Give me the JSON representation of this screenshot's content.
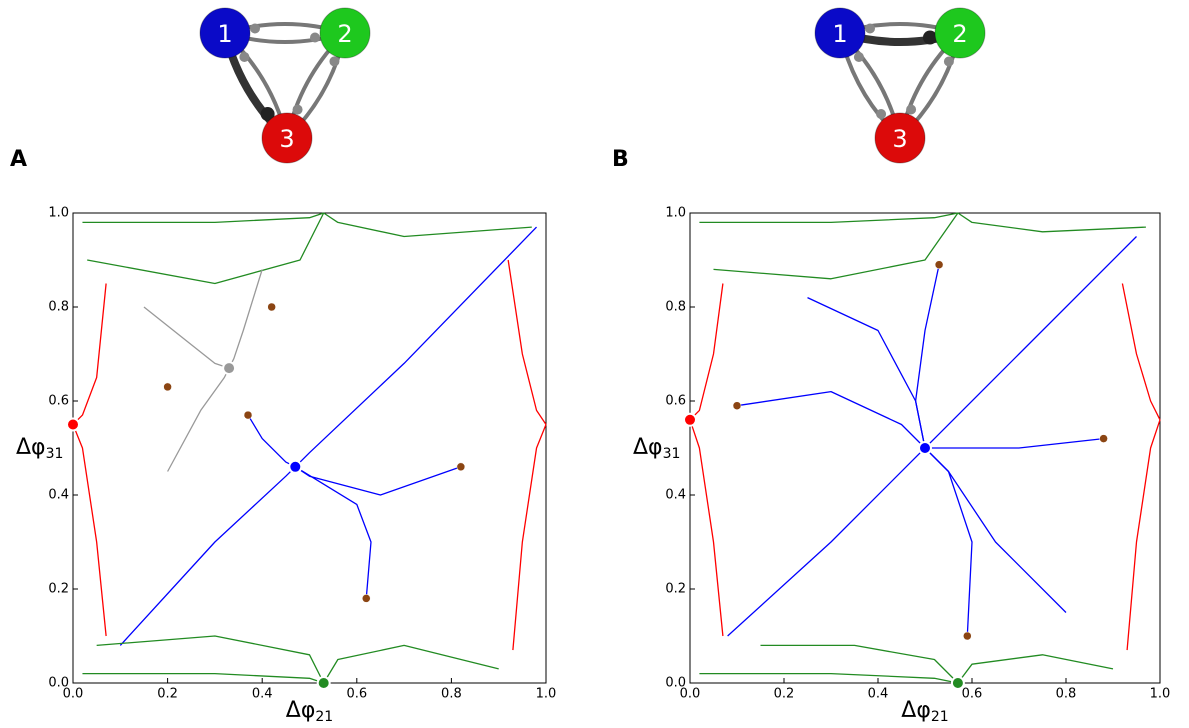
{
  "charts": [
    {
      "type": "phase-portrait",
      "panel_label": "A",
      "xlabel": "Δφ",
      "xlabel_sub": "21",
      "ylabel": "Δφ",
      "ylabel_sub": "31",
      "xlim": [
        0,
        1
      ],
      "ylim": [
        0,
        1
      ],
      "xticks": [
        {
          "value": 0,
          "label": "0.0"
        },
        0.2,
        0.4,
        0.6,
        0.8,
        {
          "value": 1,
          "label": "1.0"
        }
      ],
      "yticks": [
        {
          "value": 0,
          "label": "0.0"
        },
        0.2,
        0.4,
        0.6,
        0.8,
        {
          "value": 1,
          "label": "1.0"
        }
      ],
      "network": {
        "nodes": [
          {
            "label": "1",
            "color": "#0a0ac8"
          },
          {
            "label": "2",
            "color": "#1ec81e"
          },
          {
            "label": "3",
            "color": "#dc0a0a"
          }
        ]
      },
      "trajectories": [
        {
          "color": "#0000ff",
          "x": [
            0.1,
            0.3,
            0.45,
            0.47
          ],
          "y": [
            0.08,
            0.3,
            0.44,
            0.46
          ]
        },
        {
          "color": "#0000ff",
          "x": [
            0.98,
            0.7,
            0.5,
            0.47
          ],
          "y": [
            0.97,
            0.68,
            0.49,
            0.46
          ]
        },
        {
          "color": "#0000ff",
          "x": [
            0.62,
            0.63,
            0.6,
            0.47
          ],
          "y": [
            0.18,
            0.3,
            0.38,
            0.46
          ]
        },
        {
          "color": "#0000ff",
          "x": [
            0.82,
            0.65,
            0.5,
            0.47
          ],
          "y": [
            0.46,
            0.4,
            0.44,
            0.46
          ]
        },
        {
          "color": "#0000ff",
          "x": [
            0.37,
            0.4,
            0.45,
            0.47
          ],
          "y": [
            0.57,
            0.52,
            0.47,
            0.46
          ]
        },
        {
          "color": "#ff0000",
          "x": [
            0.07,
            0.05,
            0.02,
            0.0
          ],
          "y": [
            0.85,
            0.65,
            0.57,
            0.55
          ]
        },
        {
          "color": "#ff0000",
          "x": [
            0.07,
            0.05,
            0.02,
            0.0
          ],
          "y": [
            0.1,
            0.3,
            0.5,
            0.55
          ]
        },
        {
          "color": "#ff0000",
          "x": [
            0.93,
            0.95,
            0.98,
            1.0
          ],
          "y": [
            0.07,
            0.3,
            0.5,
            0.55
          ]
        },
        {
          "color": "#ff0000",
          "x": [
            0.92,
            0.95,
            0.98,
            1.0
          ],
          "y": [
            0.9,
            0.7,
            0.58,
            0.55
          ]
        },
        {
          "color": "#228b22",
          "x": [
            0.02,
            0.3,
            0.5,
            0.53
          ],
          "y": [
            0.98,
            0.98,
            0.99,
            1.0
          ]
        },
        {
          "color": "#228b22",
          "x": [
            0.03,
            0.3,
            0.48,
            0.53
          ],
          "y": [
            0.9,
            0.85,
            0.9,
            1.0
          ]
        },
        {
          "color": "#228b22",
          "x": [
            0.97,
            0.7,
            0.56,
            0.53
          ],
          "y": [
            0.97,
            0.95,
            0.98,
            1.0
          ]
        },
        {
          "color": "#228b22",
          "x": [
            0.02,
            0.3,
            0.5,
            0.53
          ],
          "y": [
            0.02,
            0.02,
            0.01,
            0.0
          ]
        },
        {
          "color": "#228b22",
          "x": [
            0.05,
            0.3,
            0.5,
            0.53
          ],
          "y": [
            0.08,
            0.1,
            0.06,
            0.0
          ]
        },
        {
          "color": "#228b22",
          "x": [
            0.9,
            0.7,
            0.56,
            0.53
          ],
          "y": [
            0.03,
            0.08,
            0.05,
            0.0
          ]
        },
        {
          "color": "#999999",
          "x": [
            0.15,
            0.25,
            0.3,
            0.33
          ],
          "y": [
            0.8,
            0.72,
            0.68,
            0.67
          ]
        },
        {
          "color": "#999999",
          "x": [
            0.4,
            0.36,
            0.34,
            0.33
          ],
          "y": [
            0.88,
            0.75,
            0.69,
            0.67
          ]
        },
        {
          "color": "#999999",
          "x": [
            0.2,
            0.27,
            0.32,
            0.33
          ],
          "y": [
            0.45,
            0.58,
            0.65,
            0.67
          ]
        }
      ],
      "fixed_points": [
        {
          "x": 0.47,
          "y": 0.46,
          "color": "#0000ff",
          "stable": true
        },
        {
          "x": 0.33,
          "y": 0.67,
          "color": "#999999",
          "stable": true
        },
        {
          "x": 0.0,
          "y": 0.55,
          "color": "#ff0000",
          "stable": true
        },
        {
          "x": 0.53,
          "y": 0.0,
          "color": "#228b22",
          "stable": true
        },
        {
          "x": 0.42,
          "y": 0.8,
          "color": "#8b4513",
          "stable": false
        },
        {
          "x": 0.2,
          "y": 0.63,
          "color": "#8b4513",
          "stable": false
        },
        {
          "x": 0.37,
          "y": 0.57,
          "color": "#8b4513",
          "stable": false
        },
        {
          "x": 0.82,
          "y": 0.46,
          "color": "#8b4513",
          "stable": false
        },
        {
          "x": 0.62,
          "y": 0.18,
          "color": "#8b4513",
          "stable": false
        }
      ]
    },
    {
      "type": "phase-portrait",
      "panel_label": "B",
      "xlabel": "Δφ",
      "xlabel_sub": "21",
      "ylabel": "Δφ",
      "ylabel_sub": "31",
      "xlim": [
        0,
        1
      ],
      "ylim": [
        0,
        1
      ],
      "xticks": [
        {
          "value": 0,
          "label": "0.0"
        },
        0.2,
        0.4,
        0.6,
        0.8,
        {
          "value": 1,
          "label": "1.0"
        }
      ],
      "yticks": [
        {
          "value": 0,
          "label": "0.0"
        },
        0.2,
        0.4,
        0.6,
        0.8,
        {
          "value": 1,
          "label": "1.0"
        }
      ],
      "network": {
        "nodes": [
          {
            "label": "1",
            "color": "#0a0ac8"
          },
          {
            "label": "2",
            "color": "#1ec81e"
          },
          {
            "label": "3",
            "color": "#dc0a0a"
          }
        ]
      },
      "trajectories": [
        {
          "color": "#0000ff",
          "x": [
            0.08,
            0.3,
            0.47,
            0.5
          ],
          "y": [
            0.1,
            0.3,
            0.47,
            0.5
          ]
        },
        {
          "color": "#0000ff",
          "x": [
            0.95,
            0.7,
            0.53,
            0.5
          ],
          "y": [
            0.95,
            0.7,
            0.53,
            0.5
          ]
        },
        {
          "color": "#0000ff",
          "x": [
            0.59,
            0.6,
            0.55,
            0.5
          ],
          "y": [
            0.1,
            0.3,
            0.45,
            0.5
          ]
        },
        {
          "color": "#0000ff",
          "x": [
            0.88,
            0.7,
            0.55,
            0.5
          ],
          "y": [
            0.52,
            0.5,
            0.5,
            0.5
          ]
        },
        {
          "color": "#0000ff",
          "x": [
            0.1,
            0.3,
            0.45,
            0.5
          ],
          "y": [
            0.59,
            0.62,
            0.55,
            0.5
          ]
        },
        {
          "color": "#0000ff",
          "x": [
            0.53,
            0.5,
            0.48,
            0.5
          ],
          "y": [
            0.89,
            0.75,
            0.6,
            0.5
          ]
        },
        {
          "color": "#0000ff",
          "x": [
            0.25,
            0.4,
            0.48,
            0.5
          ],
          "y": [
            0.82,
            0.75,
            0.6,
            0.5
          ]
        },
        {
          "color": "#0000ff",
          "x": [
            0.8,
            0.65,
            0.55,
            0.5
          ],
          "y": [
            0.15,
            0.3,
            0.45,
            0.5
          ]
        },
        {
          "color": "#ff0000",
          "x": [
            0.07,
            0.05,
            0.02,
            0.0
          ],
          "y": [
            0.85,
            0.7,
            0.58,
            0.56
          ]
        },
        {
          "color": "#ff0000",
          "x": [
            0.07,
            0.05,
            0.02,
            0.0
          ],
          "y": [
            0.1,
            0.3,
            0.5,
            0.56
          ]
        },
        {
          "color": "#ff0000",
          "x": [
            0.93,
            0.95,
            0.98,
            1.0
          ],
          "y": [
            0.07,
            0.3,
            0.5,
            0.56
          ]
        },
        {
          "color": "#ff0000",
          "x": [
            0.92,
            0.95,
            0.98,
            1.0
          ],
          "y": [
            0.85,
            0.7,
            0.6,
            0.56
          ]
        },
        {
          "color": "#228b22",
          "x": [
            0.02,
            0.3,
            0.52,
            0.57
          ],
          "y": [
            0.98,
            0.98,
            0.99,
            1.0
          ]
        },
        {
          "color": "#228b22",
          "x": [
            0.05,
            0.3,
            0.5,
            0.57
          ],
          "y": [
            0.88,
            0.86,
            0.9,
            1.0
          ]
        },
        {
          "color": "#228b22",
          "x": [
            0.97,
            0.75,
            0.6,
            0.57
          ],
          "y": [
            0.97,
            0.96,
            0.98,
            1.0
          ]
        },
        {
          "color": "#228b22",
          "x": [
            0.02,
            0.3,
            0.52,
            0.57
          ],
          "y": [
            0.02,
            0.02,
            0.01,
            0.0
          ]
        },
        {
          "color": "#228b22",
          "x": [
            0.15,
            0.35,
            0.52,
            0.57
          ],
          "y": [
            0.08,
            0.08,
            0.05,
            0.0
          ]
        },
        {
          "color": "#228b22",
          "x": [
            0.9,
            0.75,
            0.6,
            0.57
          ],
          "y": [
            0.03,
            0.06,
            0.04,
            0.0
          ]
        }
      ],
      "fixed_points": [
        {
          "x": 0.5,
          "y": 0.5,
          "color": "#0000ff",
          "stable": true
        },
        {
          "x": 0.0,
          "y": 0.56,
          "color": "#ff0000",
          "stable": true
        },
        {
          "x": 0.57,
          "y": 0.0,
          "color": "#228b22",
          "stable": true
        },
        {
          "x": 0.53,
          "y": 0.89,
          "color": "#8b4513",
          "stable": false
        },
        {
          "x": 0.1,
          "y": 0.59,
          "color": "#8b4513",
          "stable": false
        },
        {
          "x": 0.88,
          "y": 0.52,
          "color": "#8b4513",
          "stable": false
        },
        {
          "x": 0.59,
          "y": 0.1,
          "color": "#8b4513",
          "stable": false
        }
      ]
    }
  ]
}
